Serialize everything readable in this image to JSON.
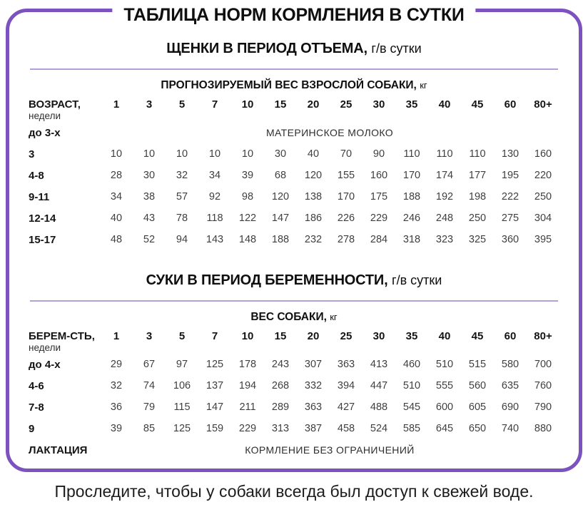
{
  "title": "ТАБЛИЦА НОРМ КОРМЛЕНИЯ В СУТКИ",
  "footer": "Проследите, чтобы у собаки всегда был доступ к свежей воде.",
  "colors": {
    "border_purple": "#7c52bf",
    "divider_purple": "#b49fdb"
  },
  "columns": [
    "1",
    "3",
    "5",
    "7",
    "10",
    "15",
    "20",
    "25",
    "30",
    "35",
    "40",
    "45",
    "60",
    "80+"
  ],
  "sections": [
    {
      "subtitle_bold": "ЩЕНКИ В ПЕРИОД ОТЪЕМА,",
      "subtitle_unit": "г/в сутки",
      "table_header_bold": "ПРОГНОЗИРУЕМЫЙ ВЕС ВЗРОСЛОЙ СОБАКИ,",
      "table_header_unit": "кг",
      "row_label_bold": "ВОЗРАСТ,",
      "row_label_sub": "недели",
      "rows": [
        {
          "label": "до 3-х",
          "span": "МАТЕРИНСКОЕ МОЛОКО"
        },
        {
          "label": "3",
          "values": [
            "10",
            "10",
            "10",
            "10",
            "10",
            "30",
            "40",
            "70",
            "90",
            "110",
            "110",
            "110",
            "130",
            "160"
          ]
        },
        {
          "label": "4-8",
          "values": [
            "28",
            "30",
            "32",
            "34",
            "39",
            "68",
            "120",
            "155",
            "160",
            "170",
            "174",
            "177",
            "195",
            "220"
          ]
        },
        {
          "label": "9-11",
          "values": [
            "34",
            "38",
            "57",
            "92",
            "98",
            "120",
            "138",
            "170",
            "175",
            "188",
            "192",
            "198",
            "222",
            "250"
          ]
        },
        {
          "label": "12-14",
          "values": [
            "40",
            "43",
            "78",
            "118",
            "122",
            "147",
            "186",
            "226",
            "229",
            "246",
            "248",
            "250",
            "275",
            "304"
          ]
        },
        {
          "label": "15-17",
          "values": [
            "48",
            "52",
            "94",
            "143",
            "148",
            "188",
            "232",
            "278",
            "284",
            "318",
            "323",
            "325",
            "360",
            "395"
          ]
        }
      ]
    },
    {
      "subtitle_bold": "СУКИ В ПЕРИОД БЕРЕМЕННОСТИ,",
      "subtitle_unit": "г/в сутки",
      "table_header_bold": "ВЕС СОБАКИ,",
      "table_header_unit": "кг",
      "row_label_bold": "БЕРЕМ-СТЬ,",
      "row_label_sub": "недели",
      "rows": [
        {
          "label": "до 4-х",
          "values": [
            "29",
            "67",
            "97",
            "125",
            "178",
            "243",
            "307",
            "363",
            "413",
            "460",
            "510",
            "515",
            "580",
            "700"
          ]
        },
        {
          "label": "4-6",
          "values": [
            "32",
            "74",
            "106",
            "137",
            "194",
            "268",
            "332",
            "394",
            "447",
            "510",
            "555",
            "560",
            "635",
            "760"
          ]
        },
        {
          "label": "7-8",
          "values": [
            "36",
            "79",
            "115",
            "147",
            "211",
            "289",
            "363",
            "427",
            "488",
            "545",
            "600",
            "605",
            "690",
            "790"
          ]
        },
        {
          "label": "9",
          "values": [
            "39",
            "85",
            "125",
            "159",
            "229",
            "313",
            "387",
            "458",
            "524",
            "585",
            "645",
            "650",
            "740",
            "880"
          ]
        },
        {
          "label": "ЛАКТАЦИЯ",
          "span": "КОРМЛЕНИЕ БЕЗ ОГРАНИЧЕНИЙ"
        }
      ]
    }
  ]
}
